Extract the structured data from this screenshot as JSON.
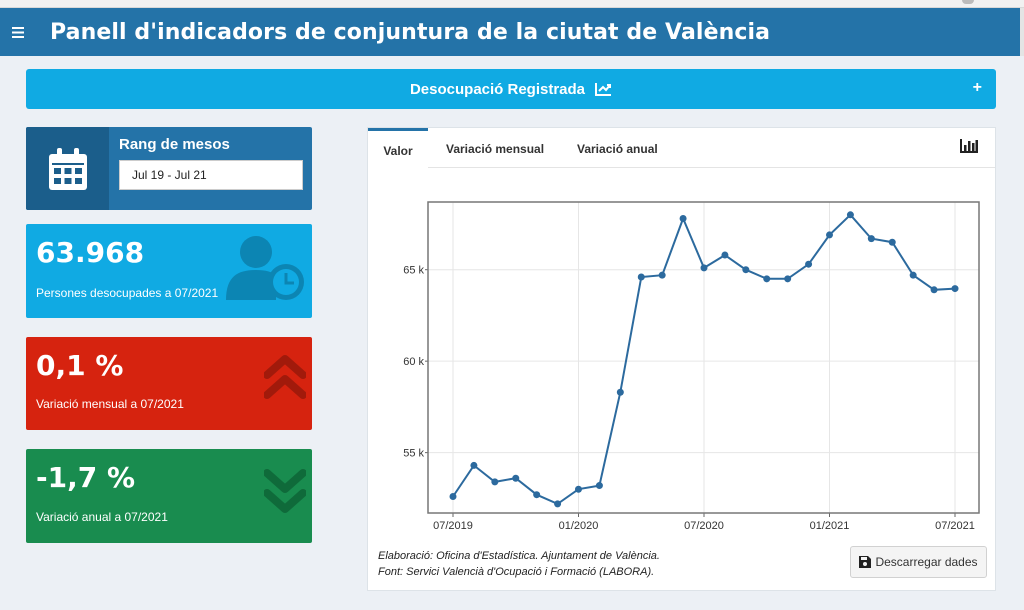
{
  "header": {
    "title": "Panell d'indicadors de conjuntura de la ciutat de València"
  },
  "section": {
    "label": "Desocupació Registrada",
    "expand_symbol": "+"
  },
  "range_box": {
    "title": "Rang de mesos",
    "value": "Jul 19 - Jul 21",
    "icon": "calendar-icon"
  },
  "persons_box": {
    "value": "63.968",
    "label": "Persones desocupades a 07/2021",
    "icon": "user-clock-icon"
  },
  "monthly_box": {
    "value": "0,1 %",
    "label": "Variació mensual a 07/2021",
    "icon": "double-chevron-up-icon"
  },
  "annual_box": {
    "value": "-1,7 %",
    "label": "Variació anual a 07/2021",
    "icon": "double-chevron-down-icon"
  },
  "tabs": [
    {
      "label": "Valor",
      "active": true
    },
    {
      "label": "Variació mensual",
      "active": false
    },
    {
      "label": "Variació anual",
      "active": false
    }
  ],
  "notes": {
    "line1": "Elaboració: Oficina d'Estadística. Ajuntament de València.",
    "line2": "Font: Servici Valencià d'Ocupació i Formació (LABORA)."
  },
  "download": {
    "label": "Descarregar dades"
  },
  "colors": {
    "header": "#2473a8",
    "accent_blue": "#10aae3",
    "red": "#d6230f",
    "green": "#198c4f",
    "line": "#2c6a9e"
  },
  "chart_data": {
    "type": "line",
    "x": [
      "2019-07",
      "2019-08",
      "2019-09",
      "2019-10",
      "2019-11",
      "2019-12",
      "2020-01",
      "2020-02",
      "2020-03",
      "2020-04",
      "2020-05",
      "2020-06",
      "2020-07",
      "2020-08",
      "2020-09",
      "2020-10",
      "2020-11",
      "2020-12",
      "2021-01",
      "2021-02",
      "2021-03",
      "2021-04",
      "2021-05",
      "2021-06",
      "2021-07"
    ],
    "values": [
      52600,
      54300,
      53400,
      53600,
      52700,
      52200,
      53000,
      53200,
      58300,
      64600,
      64700,
      67800,
      65100,
      65800,
      65000,
      64500,
      64500,
      65300,
      66900,
      68000,
      66700,
      66500,
      64700,
      63900,
      63968
    ],
    "xticks": [
      "07/2019",
      "01/2020",
      "07/2020",
      "01/2021",
      "07/2021"
    ],
    "yticks": [
      "55 k",
      "60 k",
      "65 k"
    ],
    "ytick_values": [
      55000,
      60000,
      65000
    ],
    "ylim": [
      51700,
      68700
    ],
    "grid": true,
    "xlabel": "",
    "ylabel": ""
  }
}
